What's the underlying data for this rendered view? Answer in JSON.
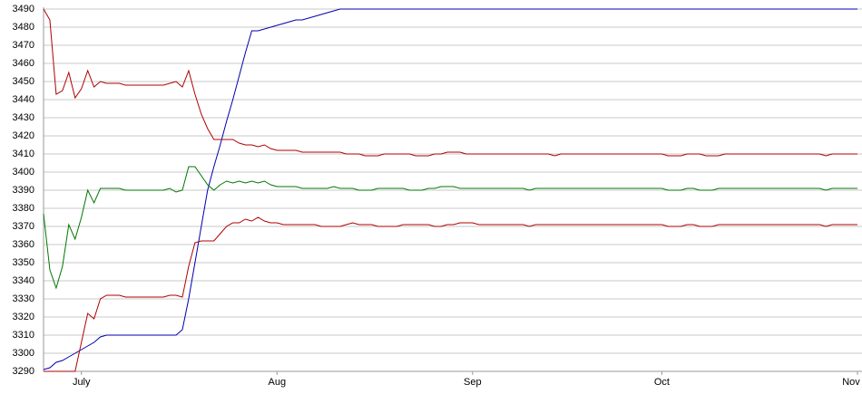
{
  "chart_data": {
    "type": "line",
    "categories": [
      null,
      null,
      null,
      null,
      null,
      null,
      "July",
      null,
      null,
      null,
      null,
      null,
      null,
      null,
      null,
      null,
      null,
      null,
      null,
      null,
      null,
      null,
      null,
      null,
      null,
      null,
      null,
      null,
      null,
      null,
      null,
      null,
      null,
      null,
      null,
      null,
      null,
      "Aug",
      null,
      null,
      null,
      null,
      null,
      null,
      null,
      null,
      null,
      null,
      null,
      null,
      null,
      null,
      null,
      null,
      null,
      null,
      null,
      null,
      null,
      null,
      null,
      null,
      null,
      null,
      null,
      null,
      null,
      null,
      "Sep",
      null,
      null,
      null,
      null,
      null,
      null,
      null,
      null,
      null,
      null,
      null,
      null,
      null,
      null,
      null,
      null,
      null,
      null,
      null,
      null,
      null,
      null,
      null,
      null,
      null,
      null,
      null,
      null,
      null,
      "Oct",
      null,
      null,
      null,
      null,
      null,
      null,
      null,
      null,
      null,
      null,
      null,
      null,
      null,
      null,
      null,
      null,
      null,
      null,
      null,
      null,
      null,
      null,
      null,
      null,
      null,
      null,
      null,
      null,
      null,
      null,
      "Nov"
    ],
    "series": [
      {
        "color": "#0000b0",
        "values": [
          3291,
          3292,
          3295,
          3296,
          3298,
          3300,
          3302,
          3304,
          3306,
          3309,
          3310,
          3310,
          3310,
          3310,
          3310,
          3310,
          3310,
          3310,
          3310,
          3310,
          3310,
          3310,
          3313,
          3330,
          3350,
          3370,
          3390,
          3403,
          3415,
          3428,
          3440,
          3453,
          3466,
          3478,
          3478,
          3479,
          3480,
          3481,
          3482,
          3483,
          3484,
          3484,
          3485,
          3486,
          3487,
          3488,
          3489,
          3490,
          3490,
          3490,
          3490,
          3490,
          3490,
          3490,
          3490,
          3490,
          3490,
          3490,
          3490,
          3490,
          3490,
          3490,
          3490,
          3490,
          3490,
          3490,
          3490,
          3490,
          3490,
          3490,
          3490,
          3490,
          3490,
          3490,
          3490,
          3490,
          3490,
          3490,
          3490,
          3490,
          3490,
          3490,
          3490,
          3490,
          3490,
          3490,
          3490,
          3490,
          3490,
          3490,
          3490,
          3490,
          3490,
          3490,
          3490,
          3490,
          3490,
          3490,
          3490,
          3490,
          3490,
          3490,
          3490,
          3490,
          3490,
          3490,
          3490,
          3490,
          3490,
          3490,
          3490,
          3490,
          3490,
          3490,
          3490,
          3490,
          3490,
          3490,
          3490,
          3490,
          3490,
          3490,
          3490,
          3490,
          3490,
          3490,
          3490,
          3490,
          3490,
          3490
        ]
      },
      {
        "color": "#b00000",
        "values": [
          3490,
          3484,
          3443,
          3445,
          3455,
          3441,
          3446,
          3456,
          3447,
          3450,
          3449,
          3449,
          3449,
          3448,
          3448,
          3448,
          3448,
          3448,
          3448,
          3448,
          3449,
          3450,
          3447,
          3456,
          3443,
          3432,
          3424,
          3418,
          3418,
          3418,
          3418,
          3416,
          3415,
          3415,
          3414,
          3415,
          3413,
          3412,
          3412,
          3412,
          3412,
          3411,
          3411,
          3411,
          3411,
          3411,
          3411,
          3411,
          3410,
          3410,
          3410,
          3409,
          3409,
          3409,
          3410,
          3410,
          3410,
          3410,
          3410,
          3409,
          3409,
          3409,
          3410,
          3410,
          3411,
          3411,
          3411,
          3410,
          3410,
          3410,
          3410,
          3410,
          3410,
          3410,
          3410,
          3410,
          3410,
          3410,
          3410,
          3410,
          3410,
          3409,
          3410,
          3410,
          3410,
          3410,
          3410,
          3410,
          3410,
          3410,
          3410,
          3410,
          3410,
          3410,
          3410,
          3410,
          3410,
          3410,
          3410,
          3409,
          3409,
          3409,
          3410,
          3410,
          3410,
          3409,
          3409,
          3409,
          3410,
          3410,
          3410,
          3410,
          3410,
          3410,
          3410,
          3410,
          3410,
          3410,
          3410,
          3410,
          3410,
          3410,
          3410,
          3410,
          3409,
          3410,
          3410,
          3410,
          3410,
          3410
        ]
      },
      {
        "color": "#007700",
        "values": [
          3377,
          3346,
          3336,
          3348,
          3371,
          3363,
          3375,
          3390,
          3383,
          3391,
          3391,
          3391,
          3391,
          3390,
          3390,
          3390,
          3390,
          3390,
          3390,
          3390,
          3391,
          3389,
          3390,
          3403,
          3403,
          3398,
          3393,
          3390,
          3393,
          3395,
          3394,
          3395,
          3394,
          3395,
          3394,
          3395,
          3393,
          3392,
          3392,
          3392,
          3392,
          3391,
          3391,
          3391,
          3391,
          3391,
          3392,
          3391,
          3391,
          3391,
          3390,
          3390,
          3390,
          3391,
          3391,
          3391,
          3391,
          3391,
          3390,
          3390,
          3390,
          3391,
          3391,
          3392,
          3392,
          3392,
          3391,
          3391,
          3391,
          3391,
          3391,
          3391,
          3391,
          3391,
          3391,
          3391,
          3391,
          3390,
          3391,
          3391,
          3391,
          3391,
          3391,
          3391,
          3391,
          3391,
          3391,
          3391,
          3391,
          3391,
          3391,
          3391,
          3391,
          3391,
          3391,
          3391,
          3391,
          3391,
          3391,
          3390,
          3390,
          3390,
          3391,
          3391,
          3390,
          3390,
          3390,
          3391,
          3391,
          3391,
          3391,
          3391,
          3391,
          3391,
          3391,
          3391,
          3391,
          3391,
          3391,
          3391,
          3391,
          3391,
          3391,
          3391,
          3390,
          3391,
          3391,
          3391,
          3391,
          3391
        ]
      },
      {
        "color": "#b00000",
        "values": [
          3290,
          3290,
          3290,
          3290,
          3290,
          3290,
          3306,
          3322,
          3319,
          3330,
          3332,
          3332,
          3332,
          3331,
          3331,
          3331,
          3331,
          3331,
          3331,
          3331,
          3332,
          3332,
          3331,
          3348,
          3361,
          3362,
          3362,
          3362,
          3366,
          3370,
          3372,
          3372,
          3374,
          3373,
          3375,
          3373,
          3372,
          3372,
          3371,
          3371,
          3371,
          3371,
          3371,
          3371,
          3370,
          3370,
          3370,
          3370,
          3371,
          3372,
          3371,
          3371,
          3371,
          3370,
          3370,
          3370,
          3370,
          3371,
          3371,
          3371,
          3371,
          3371,
          3370,
          3370,
          3371,
          3371,
          3372,
          3372,
          3372,
          3371,
          3371,
          3371,
          3371,
          3371,
          3371,
          3371,
          3371,
          3370,
          3371,
          3371,
          3371,
          3371,
          3371,
          3371,
          3371,
          3371,
          3371,
          3371,
          3371,
          3371,
          3371,
          3371,
          3371,
          3371,
          3371,
          3371,
          3371,
          3371,
          3371,
          3370,
          3370,
          3370,
          3371,
          3371,
          3370,
          3370,
          3370,
          3371,
          3371,
          3371,
          3371,
          3371,
          3371,
          3371,
          3371,
          3371,
          3371,
          3371,
          3371,
          3371,
          3371,
          3371,
          3371,
          3371,
          3370,
          3371,
          3371,
          3371,
          3371,
          3371
        ]
      }
    ],
    "ylim": [
      3290,
      3490
    ],
    "yticks": [
      3290,
      3300,
      3310,
      3320,
      3330,
      3340,
      3350,
      3360,
      3370,
      3380,
      3390,
      3400,
      3410,
      3420,
      3430,
      3440,
      3450,
      3460,
      3470,
      3480,
      3490
    ],
    "grid": true
  }
}
